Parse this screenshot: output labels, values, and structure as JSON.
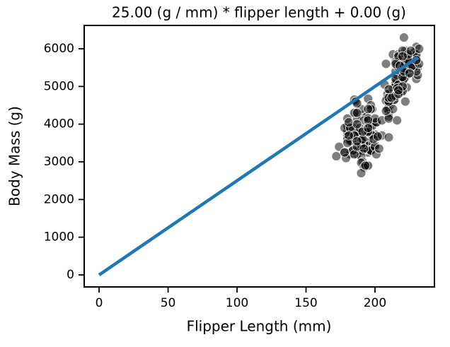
{
  "chart_data": {
    "type": "scatter",
    "title": "25.00 (g / mm) * flipper length + 0.00 (g)",
    "x_label": "Flipper Length (mm)",
    "y_label": "Body Mass (g)",
    "xlim": [
      -10.8,
      243.1
    ],
    "ylim": [
      -319,
      6619
    ],
    "xticks": [
      0,
      50,
      100,
      150,
      200
    ],
    "yticks": [
      0,
      1000,
      2000,
      3000,
      4000,
      5000,
      6000
    ],
    "grid": false,
    "color": "#000000",
    "x": [
      181,
      186,
      195,
      193,
      190,
      181,
      195,
      193,
      190,
      186,
      180,
      182,
      191,
      198,
      185,
      195,
      197,
      184,
      194,
      174,
      180,
      189,
      185,
      180,
      187,
      183,
      187,
      172,
      180,
      178,
      178,
      188,
      184,
      195,
      180,
      196,
      182,
      191,
      185,
      190,
      182,
      179,
      190,
      191,
      186,
      188,
      190,
      200,
      187,
      191,
      186,
      193,
      181,
      194,
      185,
      195,
      185,
      192,
      184,
      192,
      195,
      188,
      190,
      198,
      190,
      196,
      197,
      185,
      189,
      187,
      201,
      180,
      210,
      200,
      192,
      196,
      193,
      188,
      197,
      198,
      178,
      197,
      195,
      198,
      193,
      194,
      185,
      201,
      190,
      201,
      197,
      181,
      190,
      195,
      191,
      187,
      193,
      195,
      197,
      200,
      200,
      191,
      205,
      187,
      201,
      187,
      203,
      195,
      199,
      195,
      210,
      192,
      205,
      210,
      187,
      202,
      211,
      230,
      210,
      218,
      215,
      210,
      211,
      219,
      209,
      215,
      214,
      216,
      214,
      213,
      210,
      217,
      210,
      221,
      209,
      222,
      218,
      215,
      213,
      215,
      215,
      215,
      216,
      215,
      210,
      220,
      222,
      209,
      207,
      230,
      220,
      220,
      213,
      219,
      208,
      208,
      208,
      225,
      210,
      216,
      222,
      217,
      210,
      225,
      213,
      215,
      210,
      215,
      219,
      220,
      223,
      226,
      221,
      226,
      222,
      223,
      230,
      217,
      222,
      231,
      223,
      222,
      229,
      220,
      228,
      230,
      222,
      231,
      218,
      228,
      216,
      230,
      221,
      224,
      228,
      220,
      230,
      225,
      215,
      224,
      226,
      224,
      220,
      232,
      227,
      232,
      221,
      212,
      220,
      230,
      217,
      220,
      226,
      225,
      217
    ],
    "values": [
      3750,
      3800,
      3250,
      3450,
      3650,
      3625,
      4675,
      3475,
      4250,
      3300,
      3700,
      3200,
      3800,
      4400,
      3700,
      3450,
      4500,
      3325,
      4200,
      3400,
      3600,
      3800,
      3950,
      3800,
      3800,
      3550,
      3200,
      3150,
      3950,
      3250,
      3900,
      3300,
      3900,
      3325,
      4150,
      3950,
      3550,
      3300,
      4650,
      3150,
      3900,
      3100,
      4400,
      3000,
      4600,
      3425,
      2975,
      3450,
      4150,
      3500,
      4300,
      3450,
      4050,
      2900,
      3700,
      3550,
      4300,
      2850,
      3300,
      4100,
      2900,
      3800,
      2700,
      4000,
      3475,
      3950,
      4400,
      3200,
      3900,
      4000,
      3650,
      3500,
      4300,
      3725,
      3500,
      3900,
      3650,
      3525,
      3725,
      3950,
      3250,
      3750,
      4150,
      3700,
      3800,
      3775,
      3700,
      4050,
      3575,
      4050,
      3300,
      3700,
      3450,
      4400,
      3600,
      3400,
      2900,
      3800,
      3300,
      4150,
      3400,
      3800,
      3700,
      4550,
      3200,
      4300,
      3350,
      4100,
      3600,
      3900,
      4800,
      3350,
      4100,
      3650,
      3550,
      3675,
      4500,
      5700,
      4450,
      5700,
      5400,
      4550,
      4800,
      5200,
      4400,
      5150,
      4650,
      5550,
      4650,
      5850,
      4200,
      5850,
      4150,
      6300,
      4800,
      5350,
      5700,
      5000,
      4400,
      5050,
      5000,
      5100,
      4100,
      5650,
      4600,
      5550,
      5250,
      4700,
      5050,
      6050,
      5150,
      5400,
      4950,
      5250,
      4350,
      5600,
      4625,
      5350,
      4600,
      5300,
      4600,
      5800,
      4700,
      5800,
      4750,
      5600,
      4925,
      5200,
      4850,
      5500,
      5450,
      5850,
      5550,
      5600,
      5850,
      4975,
      5750,
      5050,
      5950,
      5500,
      5700,
      5450,
      5550,
      5950,
      5500,
      5200,
      5600,
      5300,
      5550,
      5900,
      4950,
      5850,
      5200,
      5800,
      5650,
      5250,
      5400,
      5650,
      4750,
      5700,
      5500,
      5850,
      4875,
      6000,
      5550,
      5600,
      5400,
      4700,
      5800,
      5700,
      4800,
      5000,
      5950,
      5350,
      4900
    ],
    "fit": {
      "type": "line",
      "x": [
        0,
        231
      ],
      "values": [
        0,
        5775
      ],
      "color": "#1f77b4"
    }
  }
}
